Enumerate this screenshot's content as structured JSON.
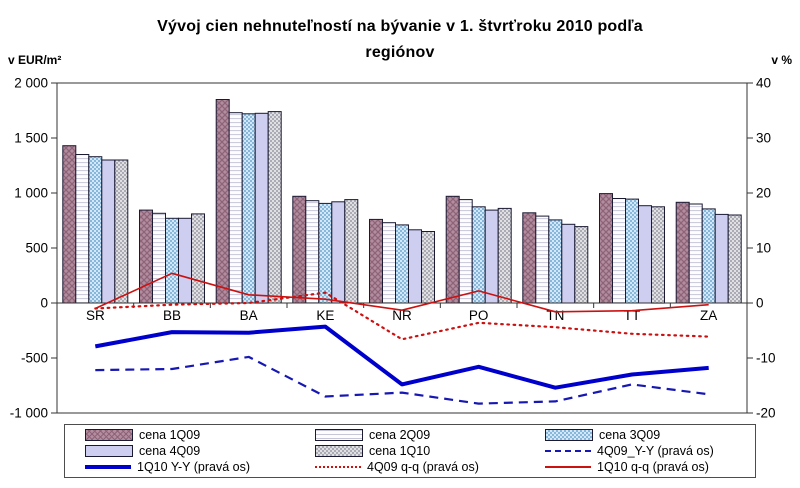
{
  "header": {
    "title_line1": "Vývoj cien nehnuteľností na bývanie v 1. štvrťroku 2010 podľa",
    "title_line2": "regiónov",
    "left_axis_unit": "v EUR/m²",
    "right_axis_unit": "v %"
  },
  "chart_data": {
    "type": "combo (bar + line, dual axis)",
    "title": "Vývoj cien nehnuteľností na bývanie v 1. štvrťroku 2010 podľa regiónov",
    "categories": [
      "SR",
      "BB",
      "BA",
      "KE",
      "NR",
      "PO",
      "TN",
      "TT",
      "ZA"
    ],
    "left_axis": {
      "unit": "v EUR/m²",
      "min": -1000,
      "max": 2000,
      "tick_step": 500,
      "tick_labels": [
        "2 000",
        "1 500",
        "1 000",
        "500",
        "0",
        "-500",
        "-1 000"
      ]
    },
    "right_axis": {
      "unit": "v %",
      "min": -20,
      "max": 40,
      "tick_step": 10,
      "tick_labels": [
        "40",
        "30",
        "20",
        "10",
        "0",
        "-10",
        "-20"
      ]
    },
    "bar_series": [
      {
        "name": "cena 1Q09",
        "axis": "left",
        "fill": "#B28DA0",
        "pattern": "diagonal-crosshatch",
        "pattern_color": "#8E6378",
        "values": [
          1430,
          845,
          1850,
          970,
          760,
          970,
          820,
          995,
          915
        ]
      },
      {
        "name": "cena 2Q09",
        "axis": "left",
        "fill": "#FDFDFF",
        "pattern": "horizontal-stripes",
        "pattern_color": "#C6C6D8",
        "values": [
          1350,
          815,
          1730,
          930,
          730,
          940,
          790,
          950,
          900
        ]
      },
      {
        "name": "cena 3Q09",
        "axis": "left",
        "fill": "#D3E7F5",
        "pattern": "checkerboard",
        "pattern_color": "#85B8DC",
        "values": [
          1330,
          770,
          1720,
          905,
          710,
          875,
          755,
          945,
          855
        ]
      },
      {
        "name": "cena 4Q09",
        "axis": "left",
        "fill": "#CECEF0",
        "pattern": "solid",
        "pattern_color": "#CECEF0",
        "values": [
          1300,
          770,
          1725,
          920,
          665,
          845,
          715,
          885,
          805
        ]
      },
      {
        "name": "cena 1Q10",
        "axis": "left",
        "fill": "#E0E0E2",
        "pattern": "checkerboard",
        "pattern_color": "#ABABB5",
        "values": [
          1300,
          810,
          1740,
          940,
          650,
          860,
          695,
          875,
          800
        ]
      }
    ],
    "line_series": [
      {
        "name": "4Q09_Y-Y (pravá os)",
        "axis": "right",
        "color": "#1717B3",
        "style": "dashed",
        "width": 2.2,
        "values": [
          -12.2,
          -12.0,
          -9.8,
          -17.0,
          -16.3,
          -18.3,
          -17.9,
          -14.8,
          -16.6
        ]
      },
      {
        "name": "1Q10  Y-Y (pravá os)",
        "axis": "right",
        "color": "#0000CC",
        "style": "solid",
        "width": 4,
        "values": [
          -7.9,
          -5.3,
          -5.4,
          -4.3,
          -14.8,
          -11.6,
          -15.4,
          -13.0,
          -11.8
        ]
      },
      {
        "name": "4Q09  q-q (pravá os)",
        "axis": "right",
        "color": "#CC1111",
        "style": "dotted",
        "width": 2.2,
        "values": [
          -1.0,
          -0.3,
          0.0,
          1.9,
          -6.6,
          -3.6,
          -4.4,
          -5.6,
          -6.1
        ]
      },
      {
        "name": "1Q10 q-q (pravá os)",
        "axis": "right",
        "color": "#CC1111",
        "style": "solid",
        "width": 1.6,
        "values": [
          -1.0,
          5.4,
          1.5,
          0.7,
          -1.3,
          2.2,
          -1.6,
          -1.4,
          -0.3
        ]
      }
    ],
    "legend_position": "bottom",
    "grid": "off"
  },
  "legend": {
    "items": [
      {
        "label": "cena 1Q09",
        "swatch": "bar-0"
      },
      {
        "label": "cena 2Q09",
        "swatch": "bar-1"
      },
      {
        "label": "cena 3Q09",
        "swatch": "bar-2"
      },
      {
        "label": "cena 4Q09",
        "swatch": "bar-3"
      },
      {
        "label": "cena 1Q10",
        "swatch": "bar-4"
      },
      {
        "label": "4Q09_Y-Y (pravá os)",
        "swatch": "line-0"
      },
      {
        "label": "1Q10  Y-Y (pravá os)",
        "swatch": "line-1"
      },
      {
        "label": "4Q09  q-q (pravá os)",
        "swatch": "line-2"
      },
      {
        "label": "1Q10 q-q (pravá os)",
        "swatch": "line-3"
      }
    ]
  }
}
